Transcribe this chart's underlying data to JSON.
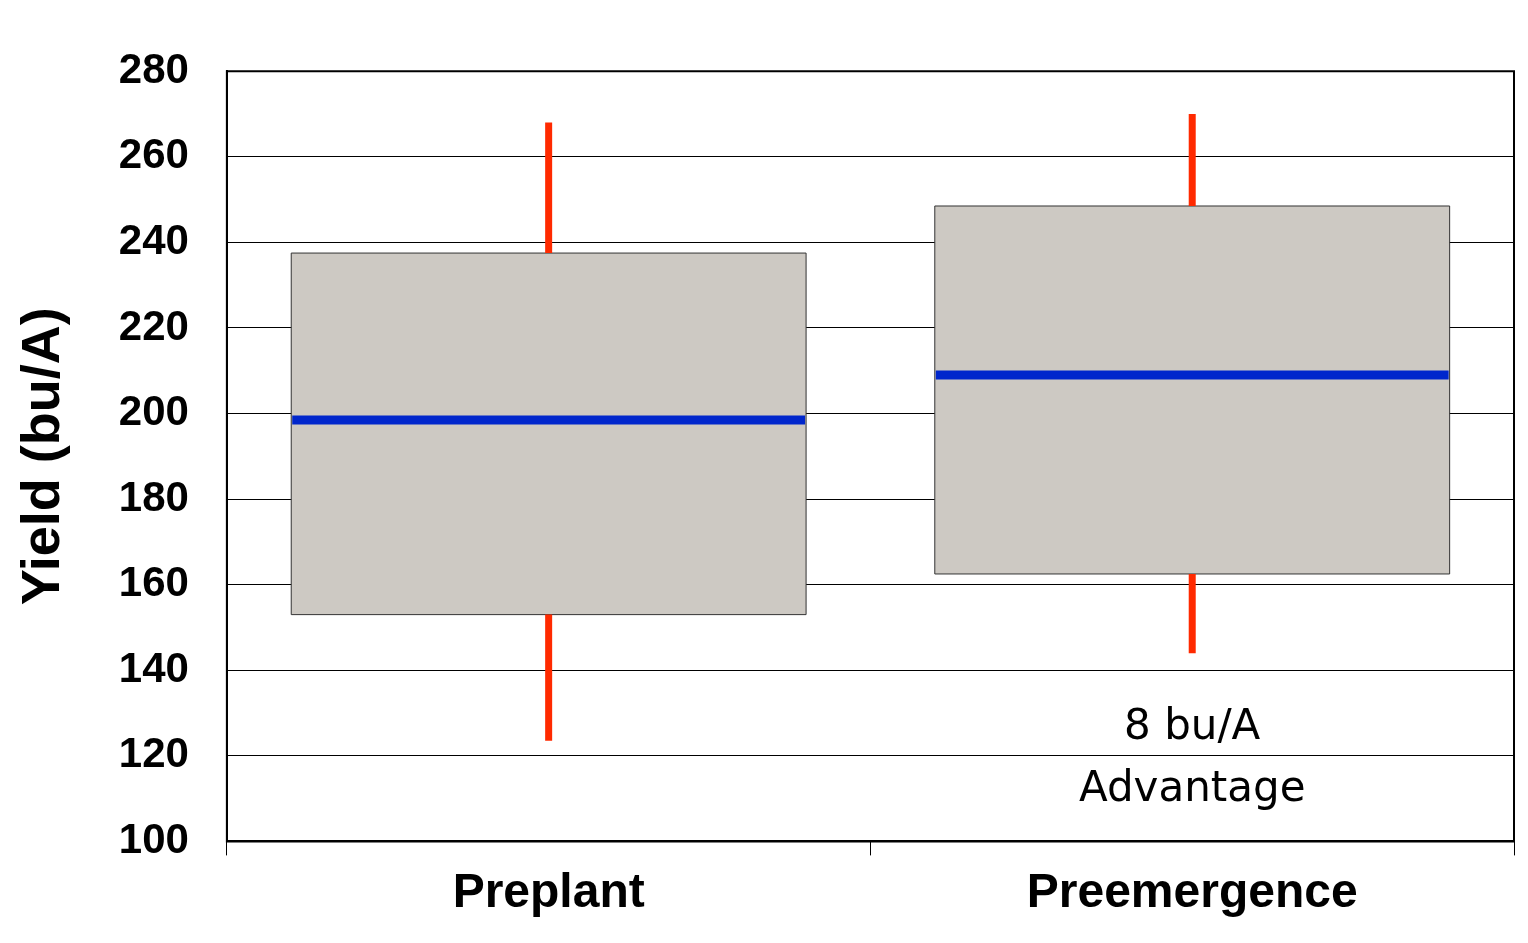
{
  "chart_data": {
    "type": "box",
    "ylabel": "Yield (bu/A)",
    "categories": [
      "Preplant",
      "Preemergence"
    ],
    "series": [
      {
        "color": "#cdc9c3",
        "boxes": [
          {
            "low": 123.5,
            "q1": 153,
            "median": 198.5,
            "q3": 237.5,
            "high": 268
          },
          {
            "low": 144,
            "q1": 162.5,
            "median": 209,
            "q3": 248.5,
            "high": 270
          }
        ]
      }
    ],
    "ylim": [
      100,
      280
    ],
    "yticks": [
      100,
      120,
      140,
      160,
      180,
      200,
      220,
      240,
      260,
      280
    ],
    "grid": "y",
    "legend": false,
    "annotations": [
      "8 bu/A Advantage"
    ]
  }
}
